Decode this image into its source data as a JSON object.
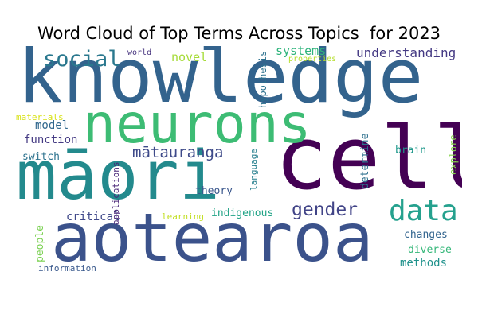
{
  "title": "Word Cloud of Top Terms Across Topics  for 2023",
  "words": [
    {
      "text": "knowledge",
      "color": "#33638d"
    },
    {
      "text": "māori",
      "color": "#238a8d"
    },
    {
      "text": "cell",
      "color": "#440154"
    },
    {
      "text": "aotearoa",
      "color": "#3b528b"
    },
    {
      "text": "neurons",
      "color": "#3dbc74"
    },
    {
      "text": "data",
      "color": "#25a18e"
    },
    {
      "text": "social",
      "color": "#2a788e"
    },
    {
      "text": "gender",
      "color": "#414487"
    },
    {
      "text": "mātauranga",
      "color": "#3e4a89"
    },
    {
      "text": "systems",
      "color": "#2fb47c"
    },
    {
      "text": "understanding",
      "color": "#443983"
    },
    {
      "text": "novel",
      "color": "#a5db36"
    },
    {
      "text": "model",
      "color": "#31688e"
    },
    {
      "text": "function",
      "color": "#443a83"
    },
    {
      "text": "critical",
      "color": "#3f4889"
    },
    {
      "text": "indigenous",
      "color": "#20a386"
    },
    {
      "text": "theory",
      "color": "#39568c"
    },
    {
      "text": "switch",
      "color": "#2c728e"
    },
    {
      "text": "brain",
      "color": "#1f988b"
    },
    {
      "text": "changes",
      "color": "#32648e"
    },
    {
      "text": "methods",
      "color": "#20928c"
    },
    {
      "text": "diverse",
      "color": "#35b779"
    },
    {
      "text": "people",
      "color": "#7ad151"
    },
    {
      "text": "world",
      "color": "#46337e"
    },
    {
      "text": "materials",
      "color": "#d8e219"
    },
    {
      "text": "properties",
      "color": "#b5de2b"
    },
    {
      "text": "learning",
      "color": "#c2df23"
    },
    {
      "text": "information",
      "color": "#38588c"
    },
    {
      "text": "hypothesis",
      "color": "#2c718e"
    },
    {
      "text": "applications",
      "color": "#482576"
    },
    {
      "text": "language",
      "color": "#277f8e"
    },
    {
      "text": "determine",
      "color": "#2d708e"
    },
    {
      "text": "explore",
      "color": "#84d44b"
    }
  ]
}
